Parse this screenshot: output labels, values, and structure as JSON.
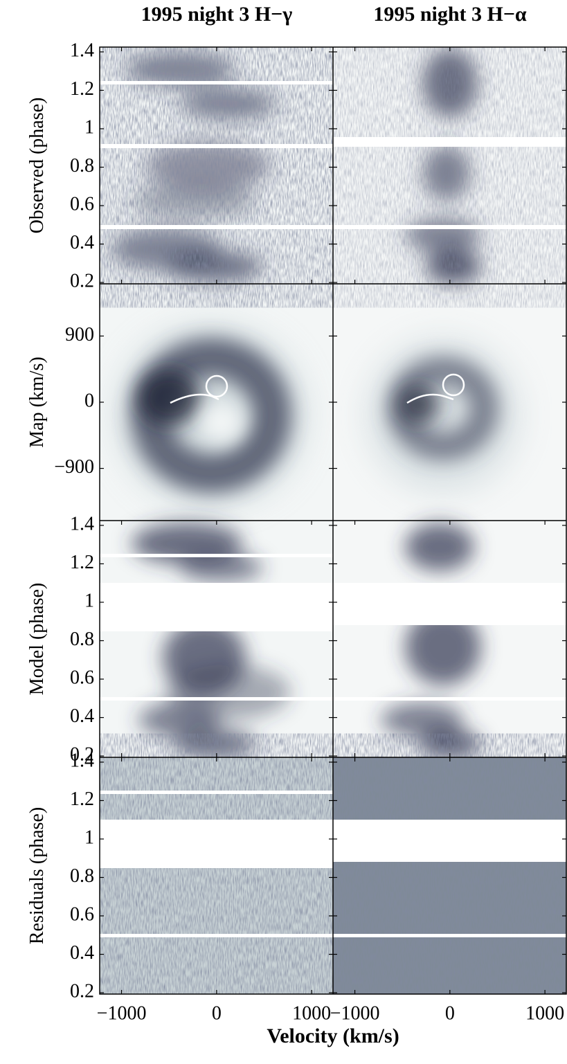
{
  "chart_data": {
    "type": "heatmap",
    "columns": [
      {
        "title": "1995 night 3 H−γ"
      },
      {
        "title": "1995 night 3 H−α"
      }
    ],
    "rows": [
      {
        "ylabel": "Observed (phase)",
        "ylim": [
          0.193,
          1.425
        ],
        "yticks": [
          0.2,
          0.4,
          0.6,
          0.8,
          1,
          1.2,
          1.4
        ]
      },
      {
        "ylabel": "Map (km/s)",
        "ylim": [
          -1610,
          1610
        ],
        "yticks": [
          {
            "value": -900,
            "label": "−900"
          },
          0,
          900
        ]
      },
      {
        "ylabel": "Model (phase)",
        "ylim": [
          0.193,
          1.425
        ],
        "yticks": [
          0.2,
          0.4,
          0.6,
          0.8,
          1,
          1.2,
          1.4
        ]
      },
      {
        "ylabel": "Residuals (phase)",
        "ylim": [
          0.193,
          1.425
        ],
        "yticks": [
          0.2,
          0.4,
          0.6,
          0.8,
          1,
          1.2,
          1.4
        ]
      }
    ],
    "xlabel": "Velocity (km/s)",
    "xlim": [
      -1230,
      1225
    ],
    "xticks": [
      {
        "value": -1000,
        "label": "−1000"
      },
      0,
      1000
    ]
  }
}
